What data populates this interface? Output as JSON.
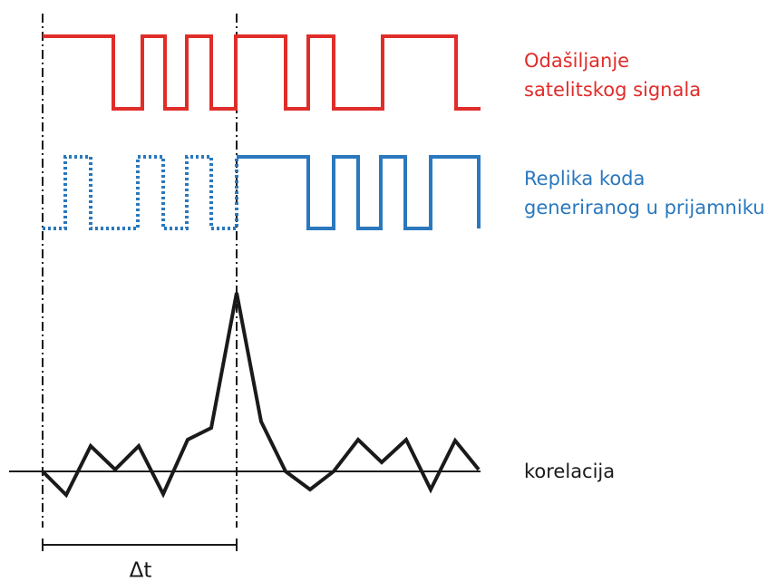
{
  "labels": {
    "transmit": [
      "Odašiljanje",
      "satelitskog signala"
    ],
    "replica": [
      "Replika koda",
      "generiranog u prijamniku"
    ],
    "correlation": "korelacija",
    "delta": "Δt"
  }
}
